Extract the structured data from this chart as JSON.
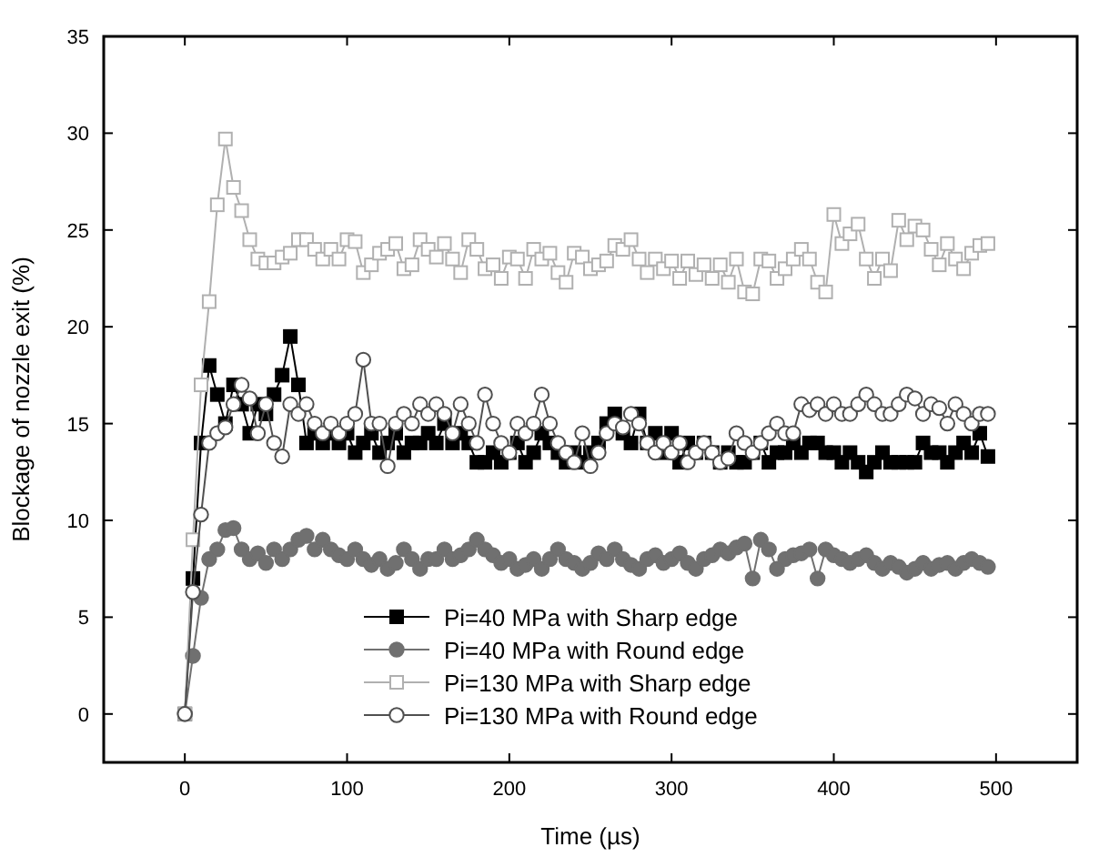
{
  "chart_data": {
    "type": "line",
    "xlabel": "Time (µs)",
    "ylabel": "Blockage of nozzle exit (%)",
    "xlim": [
      -50,
      550
    ],
    "ylim": [
      -2.5,
      35
    ],
    "xticks": [
      0,
      100,
      200,
      300,
      400,
      500
    ],
    "yticks": [
      0,
      5,
      10,
      15,
      20,
      25,
      30,
      35
    ],
    "legend": "bottom",
    "grid": false,
    "line_style": "solid",
    "x": [
      0,
      5,
      10,
      15,
      20,
      25,
      30,
      35,
      40,
      45,
      50,
      55,
      60,
      65,
      70,
      75,
      80,
      85,
      90,
      95,
      100,
      105,
      110,
      115,
      120,
      125,
      130,
      135,
      140,
      145,
      150,
      155,
      160,
      165,
      170,
      175,
      180,
      185,
      190,
      195,
      200,
      205,
      210,
      215,
      220,
      225,
      230,
      235,
      240,
      245,
      250,
      255,
      260,
      265,
      270,
      275,
      280,
      285,
      290,
      295,
      300,
      305,
      310,
      315,
      320,
      325,
      330,
      335,
      340,
      345,
      350,
      355,
      360,
      365,
      370,
      375,
      380,
      385,
      390,
      395,
      400,
      405,
      410,
      415,
      420,
      425,
      430,
      435,
      440,
      445,
      450,
      455,
      460,
      465,
      470,
      475,
      480,
      485,
      490,
      495
    ],
    "series": [
      {
        "name": "Pi=40 MPa with Sharp edge",
        "color": "#000000",
        "marker": "square",
        "values": [
          0,
          7,
          14,
          18,
          16.5,
          15,
          17,
          16,
          14.5,
          16,
          15.5,
          16.5,
          17.5,
          19.5,
          17,
          14,
          14.5,
          14,
          14.5,
          14,
          14.5,
          13.5,
          14,
          14.5,
          13.5,
          14,
          14.5,
          13.5,
          14,
          14,
          14.5,
          14,
          15,
          14,
          14.5,
          14,
          13,
          13,
          13.5,
          13,
          13.5,
          14,
          13,
          13.5,
          14.5,
          14,
          13.5,
          13,
          13.5,
          13,
          13.5,
          14,
          15,
          15.5,
          14.5,
          14,
          15.5,
          14,
          14.5,
          13.5,
          14.5,
          13,
          14,
          13.5,
          14,
          13.5,
          13,
          13.5,
          13,
          13,
          13.5,
          14,
          13,
          13.5,
          13.5,
          14,
          13.5,
          14,
          14,
          13.5,
          13.5,
          13,
          13.5,
          13,
          12.5,
          13,
          13.5,
          13,
          13,
          13,
          13,
          14,
          13.5,
          13.5,
          13,
          13.5,
          14,
          13.5,
          14.5,
          13.3
        ]
      },
      {
        "name": "Pi=40 MPa with Round edge",
        "color": "#707070",
        "marker": "circle",
        "values": [
          0,
          3,
          6,
          8,
          8.5,
          9.5,
          9.6,
          8.5,
          8,
          8.3,
          7.8,
          8.5,
          8,
          8.5,
          9,
          9.2,
          8.5,
          9,
          8.5,
          8.2,
          8,
          8.5,
          8,
          7.7,
          8,
          7.5,
          7.8,
          8.5,
          8,
          7.5,
          8,
          8,
          8.5,
          8,
          8.2,
          8.5,
          9,
          8.5,
          8.2,
          7.8,
          8,
          7.5,
          7.7,
          8,
          7.5,
          8,
          8.5,
          8,
          7.8,
          7.5,
          7.8,
          8.3,
          8,
          8.5,
          8,
          7.7,
          7.5,
          8,
          8.2,
          7.8,
          8,
          8.3,
          7.8,
          7.5,
          8,
          8.2,
          8.5,
          8.3,
          8.6,
          8.8,
          7,
          9,
          8.5,
          7.5,
          8,
          8.2,
          8.3,
          8.5,
          7,
          8.5,
          8.2,
          8,
          7.8,
          8,
          8.2,
          7.8,
          7.5,
          7.8,
          7.6,
          7.3,
          7.5,
          7.8,
          7.5,
          7.7,
          7.8,
          7.5,
          7.8,
          8,
          7.8,
          7.6
        ]
      },
      {
        "name": "Pi=130 MPa with Sharp edge",
        "color": "#b0b0b0",
        "marker": "square",
        "values": [
          0,
          9,
          17,
          21.3,
          26.3,
          29.7,
          27.2,
          26,
          24.5,
          23.5,
          23.3,
          23.3,
          23.6,
          23.8,
          24.5,
          24.5,
          24,
          23.5,
          24,
          23.5,
          24.5,
          24.4,
          22.8,
          23.2,
          23.8,
          24,
          24.3,
          23,
          23.2,
          24.5,
          24,
          23.6,
          24.3,
          23.5,
          22.8,
          24.5,
          24,
          23,
          23.2,
          22.5,
          23.6,
          23.5,
          22.5,
          24,
          23.5,
          23.8,
          22.8,
          22.3,
          23.8,
          23.6,
          23,
          23.2,
          23.4,
          24.2,
          24,
          24.5,
          23.5,
          22.8,
          23.5,
          23,
          23.4,
          22.5,
          23.4,
          22.7,
          23.2,
          22.5,
          23.2,
          22.3,
          23.5,
          21.8,
          21.7,
          23.5,
          23.4,
          22.5,
          23,
          23.5,
          24,
          23.5,
          22.3,
          21.8,
          25.8,
          24.3,
          24.8,
          25.3,
          23.5,
          22.5,
          23.5,
          22.9,
          25.5,
          24.5,
          25.2,
          25,
          24,
          23.2,
          24.3,
          23.5,
          23,
          23.8,
          24.2,
          24.3
        ]
      },
      {
        "name": "Pi=130 MPa with Round edge",
        "color": "#505050",
        "marker": "circle",
        "values": [
          0,
          6.3,
          10.3,
          14,
          14.5,
          14.8,
          16,
          17,
          16.3,
          14.5,
          16,
          14,
          13.3,
          16,
          15.5,
          16,
          15,
          14.5,
          15,
          14.5,
          15,
          15.5,
          18.3,
          15,
          15,
          12.8,
          15,
          15.5,
          15,
          16,
          15.5,
          16,
          15.5,
          14.5,
          16,
          15,
          14,
          16.5,
          15,
          14,
          13.5,
          15,
          14.5,
          15,
          16.5,
          15,
          14,
          13.5,
          13,
          14.5,
          12.8,
          13.5,
          14.5,
          15,
          14.8,
          15.5,
          15,
          14,
          13.5,
          14,
          13.5,
          14,
          13,
          13.5,
          14,
          13.5,
          13,
          13.2,
          14.5,
          14,
          13.5,
          14,
          14.5,
          15,
          14.5,
          14.5,
          16,
          15.7,
          16,
          15.5,
          16,
          15.5,
          15.5,
          16,
          16.5,
          16,
          15.5,
          15.5,
          16,
          16.5,
          16.3,
          15.5,
          16,
          15.8,
          15,
          16,
          15.5,
          15,
          15.5,
          15.5
        ]
      }
    ]
  }
}
